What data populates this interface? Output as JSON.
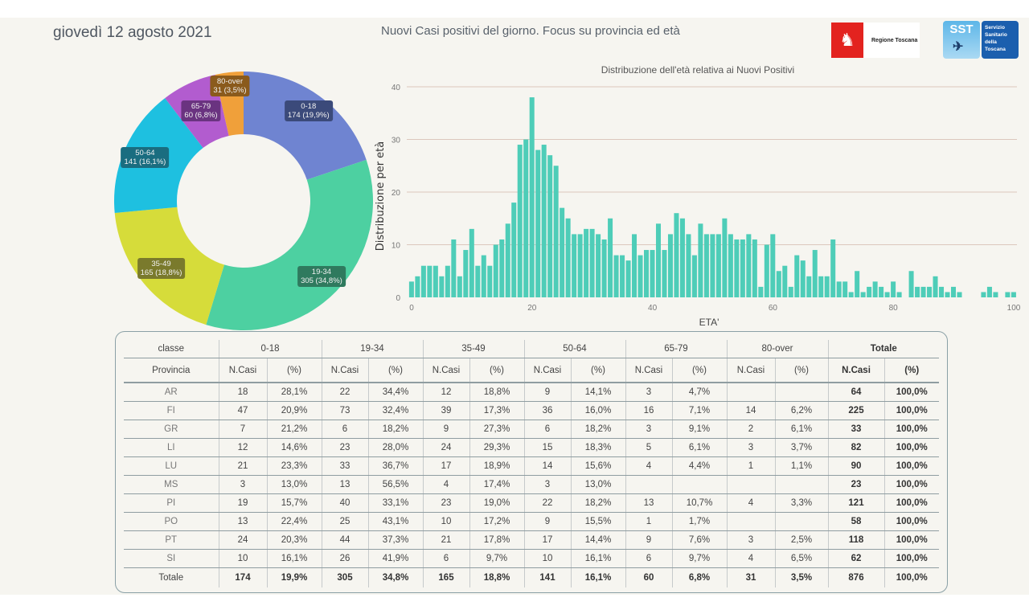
{
  "header": {
    "date": "giovedì 12 agosto 2021",
    "title": "Nuovi Casi positivi del giorno. Focus su provincia ed età",
    "logos": {
      "regione": "Regione Toscana",
      "sst_short": "SST",
      "sst_long": [
        "Servizio",
        "Sanitario",
        "della",
        "Toscana"
      ]
    }
  },
  "colors": {
    "0-18": "#6f84d1",
    "19-34": "#4dd0a1",
    "35-49": "#d6dc3a",
    "50-64": "#1ec0e0",
    "65-79": "#b25ccf",
    "80-over": "#f0a03a",
    "histogram": "#4ecdb8",
    "gridline": "#dcc7bd"
  },
  "chart_data": [
    {
      "type": "pie",
      "variant": "donut",
      "title": "",
      "categories": [
        "0-18",
        "19-34",
        "35-49",
        "50-64",
        "65-79",
        "80-over"
      ],
      "values": [
        174,
        305,
        165,
        141,
        60,
        31
      ],
      "labels": [
        "174 (19,9%)",
        "305 (34,8%)",
        "165 (18,8%)",
        "141 (16,1%)",
        "60 (6,8%)",
        "31 (3,5%)"
      ]
    },
    {
      "type": "bar",
      "title": "Distribuzione dell'età relativa ai Nuovi Positivi",
      "xlabel": "ETA'",
      "ylabel": "Distribuzione per età",
      "xlim": [
        0,
        100
      ],
      "ylim": [
        0,
        40
      ],
      "xticks": [
        0,
        20,
        40,
        60,
        80,
        100
      ],
      "yticks": [
        0,
        10,
        20,
        30,
        40
      ],
      "grid": true,
      "x": [
        0,
        1,
        2,
        3,
        4,
        5,
        6,
        7,
        8,
        9,
        10,
        11,
        12,
        13,
        14,
        15,
        16,
        17,
        18,
        19,
        20,
        21,
        22,
        23,
        24,
        25,
        26,
        27,
        28,
        29,
        30,
        31,
        32,
        33,
        34,
        35,
        36,
        37,
        38,
        39,
        40,
        41,
        42,
        43,
        44,
        45,
        46,
        47,
        48,
        49,
        50,
        51,
        52,
        53,
        54,
        55,
        56,
        57,
        58,
        59,
        60,
        61,
        62,
        63,
        64,
        65,
        66,
        67,
        68,
        69,
        70,
        71,
        72,
        73,
        74,
        75,
        76,
        77,
        78,
        79,
        80,
        81,
        82,
        83,
        84,
        85,
        86,
        87,
        88,
        89,
        90,
        91,
        92,
        93,
        94,
        95,
        96,
        97,
        98,
        99,
        100
      ],
      "values": [
        3,
        4,
        6,
        6,
        6,
        4,
        6,
        11,
        4,
        9,
        13,
        6,
        8,
        6,
        10,
        11,
        14,
        18,
        29,
        30,
        38,
        28,
        29,
        27,
        25,
        17,
        15,
        12,
        12,
        13,
        13,
        12,
        11,
        15,
        8,
        8,
        7,
        12,
        8,
        9,
        9,
        14,
        9,
        12,
        16,
        15,
        12,
        8,
        14,
        12,
        12,
        12,
        15,
        12,
        11,
        11,
        12,
        11,
        2,
        10,
        12,
        5,
        6,
        2,
        8,
        7,
        4,
        9,
        4,
        4,
        11,
        3,
        3,
        1,
        5,
        1,
        2,
        3,
        2,
        1,
        3,
        1,
        0,
        5,
        2,
        2,
        2,
        4,
        2,
        1,
        2,
        1,
        0,
        0,
        0,
        1,
        2,
        1,
        0,
        1,
        1
      ]
    },
    {
      "type": "table",
      "header_row1": [
        "classe",
        "0-18",
        "19-34",
        "35-49",
        "50-64",
        "65-79",
        "80-over",
        "Totale"
      ],
      "header_row2": [
        "Provincia",
        "N.Casi",
        "(%)",
        "N.Casi",
        "(%)",
        "N.Casi",
        "(%)",
        "N.Casi",
        "(%)",
        "N.Casi",
        "(%)",
        "N.Casi",
        "(%)",
        "N.Casi",
        "(%)"
      ],
      "rows": [
        [
          "AR",
          "18",
          "28,1%",
          "22",
          "34,4%",
          "12",
          "18,8%",
          "9",
          "14,1%",
          "3",
          "4,7%",
          "",
          "",
          "64",
          "100,0%"
        ],
        [
          "FI",
          "47",
          "20,9%",
          "73",
          "32,4%",
          "39",
          "17,3%",
          "36",
          "16,0%",
          "16",
          "7,1%",
          "14",
          "6,2%",
          "225",
          "100,0%"
        ],
        [
          "GR",
          "7",
          "21,2%",
          "6",
          "18,2%",
          "9",
          "27,3%",
          "6",
          "18,2%",
          "3",
          "9,1%",
          "2",
          "6,1%",
          "33",
          "100,0%"
        ],
        [
          "LI",
          "12",
          "14,6%",
          "23",
          "28,0%",
          "24",
          "29,3%",
          "15",
          "18,3%",
          "5",
          "6,1%",
          "3",
          "3,7%",
          "82",
          "100,0%"
        ],
        [
          "LU",
          "21",
          "23,3%",
          "33",
          "36,7%",
          "17",
          "18,9%",
          "14",
          "15,6%",
          "4",
          "4,4%",
          "1",
          "1,1%",
          "90",
          "100,0%"
        ],
        [
          "MS",
          "3",
          "13,0%",
          "13",
          "56,5%",
          "4",
          "17,4%",
          "3",
          "13,0%",
          "",
          "",
          "",
          "",
          "23",
          "100,0%"
        ],
        [
          "PI",
          "19",
          "15,7%",
          "40",
          "33,1%",
          "23",
          "19,0%",
          "22",
          "18,2%",
          "13",
          "10,7%",
          "4",
          "3,3%",
          "121",
          "100,0%"
        ],
        [
          "PO",
          "13",
          "22,4%",
          "25",
          "43,1%",
          "10",
          "17,2%",
          "9",
          "15,5%",
          "1",
          "1,7%",
          "",
          "",
          "58",
          "100,0%"
        ],
        [
          "PT",
          "24",
          "20,3%",
          "44",
          "37,3%",
          "21",
          "17,8%",
          "17",
          "14,4%",
          "9",
          "7,6%",
          "3",
          "2,5%",
          "118",
          "100,0%"
        ],
        [
          "SI",
          "10",
          "16,1%",
          "26",
          "41,9%",
          "6",
          "9,7%",
          "10",
          "16,1%",
          "6",
          "9,7%",
          "4",
          "6,5%",
          "62",
          "100,0%"
        ]
      ],
      "total_row": [
        "Totale",
        "174",
        "19,9%",
        "305",
        "34,8%",
        "165",
        "18,8%",
        "141",
        "16,1%",
        "60",
        "6,8%",
        "31",
        "3,5%",
        "876",
        "100,0%"
      ]
    }
  ]
}
